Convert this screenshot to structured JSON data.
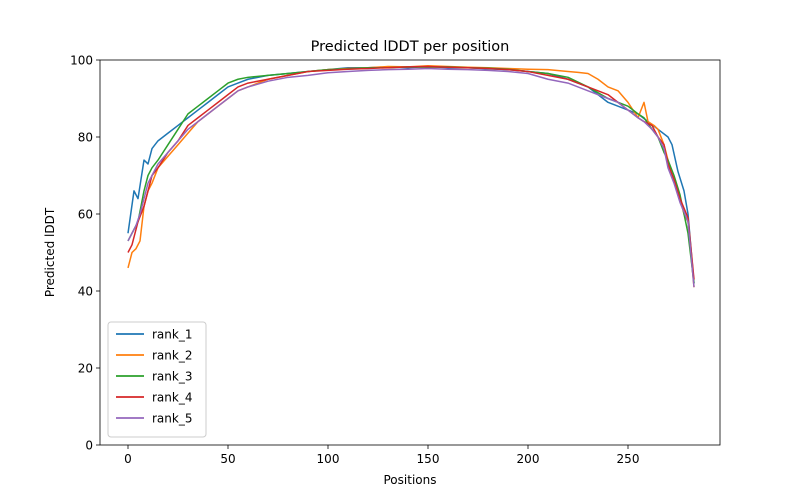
{
  "chart_data": {
    "type": "line",
    "title": "Predicted lDDT per position",
    "xlabel": "Positions",
    "ylabel": "Predicted lDDT",
    "xlim": [
      -14,
      296
    ],
    "ylim": [
      0,
      100
    ],
    "xticks": [
      0,
      50,
      100,
      150,
      200,
      250
    ],
    "yticks": [
      0,
      20,
      40,
      60,
      80,
      100
    ],
    "grid": false,
    "legend_position": "lower-left",
    "series": [
      {
        "name": "rank_1",
        "color": "#1f77b4",
        "x": [
          0,
          3,
          5,
          8,
          10,
          12,
          15,
          20,
          25,
          30,
          35,
          40,
          45,
          50,
          55,
          60,
          70,
          80,
          90,
          100,
          110,
          120,
          130,
          140,
          150,
          160,
          170,
          180,
          190,
          200,
          210,
          220,
          230,
          235,
          240,
          245,
          250,
          255,
          260,
          265,
          270,
          272,
          275,
          278,
          280,
          283
        ],
        "y": [
          55,
          66,
          64,
          74,
          73,
          77,
          79,
          81,
          83,
          85,
          87,
          89,
          91,
          93,
          94,
          95,
          96,
          96.5,
          97,
          97.5,
          98,
          98,
          98.2,
          98,
          98.3,
          98,
          98,
          97.7,
          97.5,
          97,
          96.5,
          95,
          93,
          91,
          89,
          88,
          87,
          86,
          84,
          82,
          80,
          78,
          71,
          66,
          60,
          42
        ]
      },
      {
        "name": "rank_2",
        "color": "#ff7f0e",
        "x": [
          0,
          2,
          4,
          6,
          8,
          10,
          12,
          15,
          20,
          25,
          30,
          35,
          40,
          45,
          50,
          55,
          60,
          70,
          80,
          90,
          100,
          110,
          120,
          130,
          140,
          150,
          160,
          170,
          180,
          190,
          200,
          210,
          220,
          225,
          230,
          235,
          240,
          245,
          250,
          255,
          258,
          260,
          263,
          265,
          268,
          270,
          272,
          275,
          278,
          280,
          283
        ],
        "y": [
          46,
          50,
          51,
          53,
          62,
          66,
          68,
          72,
          75,
          78,
          81,
          84,
          86,
          88,
          90,
          92,
          93,
          95,
          96,
          97,
          97.5,
          97.8,
          98,
          98.3,
          98.2,
          98.5,
          98.3,
          98.1,
          98,
          97.8,
          97.6,
          97.5,
          97,
          96.8,
          96.5,
          95,
          93,
          92,
          89,
          85,
          89,
          84,
          83,
          82,
          78,
          74,
          70,
          66,
          60,
          58,
          41
        ]
      },
      {
        "name": "rank_3",
        "color": "#2ca02c",
        "x": [
          0,
          2,
          5,
          8,
          10,
          12,
          15,
          20,
          25,
          30,
          35,
          40,
          45,
          50,
          55,
          60,
          70,
          80,
          90,
          100,
          110,
          120,
          130,
          140,
          150,
          160,
          170,
          180,
          190,
          200,
          210,
          220,
          230,
          240,
          245,
          250,
          255,
          258,
          262,
          265,
          268,
          270,
          273,
          276,
          280,
          283
        ],
        "y": [
          53,
          55,
          58,
          66,
          70,
          72,
          74,
          78,
          82,
          86,
          88,
          90,
          92,
          94,
          95,
          95.5,
          96,
          96.5,
          97,
          97.5,
          97.7,
          98,
          98,
          98.2,
          98.1,
          98.2,
          98,
          97.9,
          97.6,
          97,
          96.5,
          95.5,
          93,
          90,
          89,
          88,
          86,
          85,
          82,
          80,
          76,
          74,
          70,
          65,
          55,
          42
        ]
      },
      {
        "name": "rank_4",
        "color": "#d62728",
        "x": [
          0,
          2,
          5,
          8,
          10,
          12,
          15,
          20,
          25,
          30,
          35,
          40,
          45,
          50,
          55,
          60,
          70,
          80,
          90,
          100,
          110,
          120,
          130,
          140,
          150,
          160,
          170,
          180,
          190,
          200,
          210,
          220,
          230,
          240,
          245,
          250,
          255,
          258,
          262,
          265,
          268,
          270,
          273,
          276,
          280,
          283
        ],
        "y": [
          50,
          52,
          58,
          62,
          66,
          70,
          72,
          76,
          79,
          83,
          85,
          87,
          89,
          91,
          93,
          94,
          95,
          96,
          97,
          97.3,
          97.6,
          97.8,
          98,
          98.2,
          98.3,
          98.1,
          98,
          97.8,
          97.5,
          97,
          96,
          95,
          93,
          91,
          89,
          87,
          85,
          84,
          83,
          80,
          78,
          73,
          69,
          64,
          59,
          43
        ]
      },
      {
        "name": "rank_5",
        "color": "#9467bd",
        "x": [
          0,
          2,
          4,
          6,
          8,
          10,
          12,
          15,
          20,
          25,
          30,
          35,
          40,
          45,
          50,
          55,
          60,
          70,
          80,
          90,
          100,
          110,
          120,
          130,
          140,
          150,
          160,
          170,
          180,
          190,
          200,
          210,
          220,
          230,
          240,
          245,
          250,
          255,
          258,
          262,
          265,
          268,
          270,
          273,
          276,
          280,
          283
        ],
        "y": [
          53,
          55,
          57,
          60,
          64,
          68,
          70,
          73,
          76,
          79,
          82,
          84,
          86,
          88,
          90,
          92,
          93,
          94.5,
          95.5,
          96,
          96.7,
          97,
          97.3,
          97.5,
          97.6,
          97.8,
          97.6,
          97.5,
          97.3,
          97,
          96.5,
          95,
          94,
          92,
          90,
          89,
          87,
          85,
          84,
          82,
          80,
          77,
          72,
          68,
          63,
          58,
          41
        ]
      }
    ]
  }
}
